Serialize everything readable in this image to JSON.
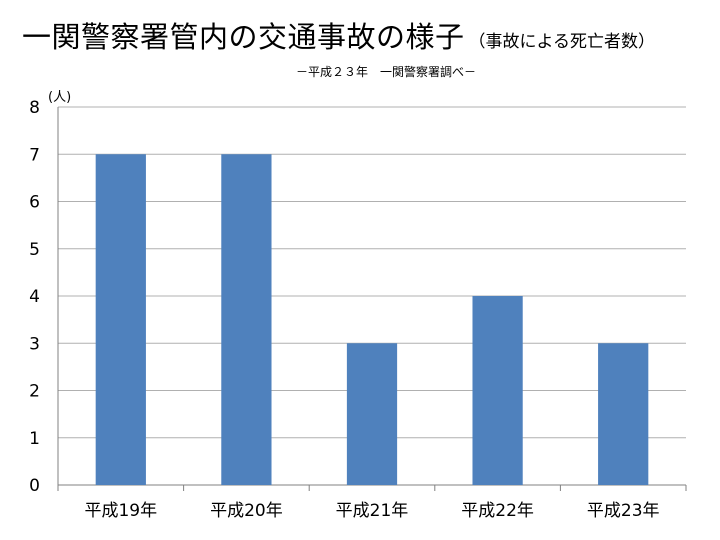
{
  "title_main": "一関警察署管内の交通事故の様子",
  "title_sub": "（事故による死亡者数）",
  "subtitle": "－平成２３年　一関警察署調べ－",
  "y_unit": "(人)",
  "colors": {
    "bar": "#4f81bd",
    "grid": "#b0b0b0",
    "axis": "#808080"
  },
  "chart_data": {
    "type": "bar",
    "title": "一関警察署管内の交通事故の様子",
    "subtitle": "（事故による死亡者数）",
    "xlabel": "",
    "ylabel": "(人)",
    "ylim": [
      0,
      8
    ],
    "yticks": [
      0,
      1,
      2,
      3,
      4,
      5,
      6,
      7,
      8
    ],
    "grid": true,
    "categories": [
      "平成19年",
      "平成20年",
      "平成21年",
      "平成22年",
      "平成23年"
    ],
    "values": [
      7,
      7,
      3,
      4,
      3
    ]
  }
}
